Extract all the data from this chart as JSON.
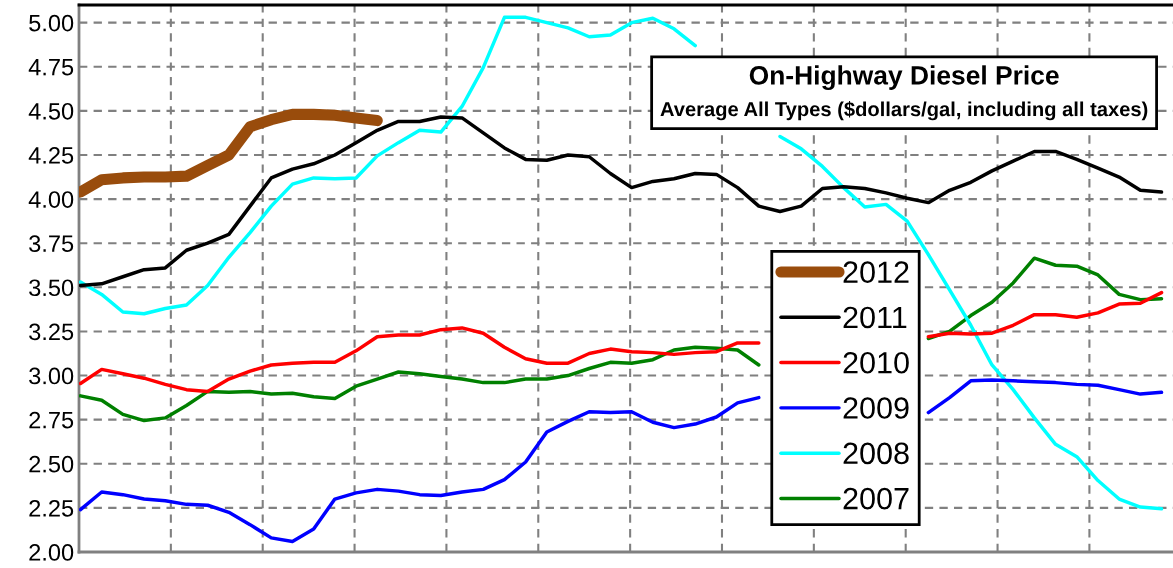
{
  "chart_data": {
    "type": "line",
    "title": "On-Highway Diesel Price",
    "subtitle": "Average All Types ($dollars/gal, including all taxes)",
    "categories": [
      null,
      null,
      null,
      null,
      null,
      null,
      null,
      null,
      null,
      null,
      null,
      null,
      null,
      null,
      null,
      null,
      null,
      null,
      null,
      null,
      null,
      null,
      null,
      null,
      null,
      null,
      null,
      null,
      null,
      null,
      null,
      null,
      null,
      null,
      null,
      null,
      null,
      null,
      null,
      null,
      null,
      null,
      null,
      null,
      null,
      null,
      null,
      null,
      null,
      null,
      null,
      null
    ],
    "ylim": [
      2.0,
      5.1
    ],
    "yticks": [
      {
        "value": 2.0,
        "label": "2.00"
      },
      {
        "value": 2.25,
        "label": "2.25"
      },
      {
        "value": 2.5,
        "label": "2.50"
      },
      {
        "value": 2.75,
        "label": "2.75"
      },
      {
        "value": 3.0,
        "label": "3.00"
      },
      {
        "value": 3.25,
        "label": "3.25"
      },
      {
        "value": 3.5,
        "label": "3.50"
      },
      {
        "value": 3.75,
        "label": "3.75"
      },
      {
        "value": 4.0,
        "label": "4.00"
      },
      {
        "value": 4.25,
        "label": "4.25"
      },
      {
        "value": 4.5,
        "label": "4.50"
      },
      {
        "value": 4.75,
        "label": "4.75"
      },
      {
        "value": 5.0,
        "label": "5.00"
      }
    ],
    "grid": true,
    "legend": "bottom right",
    "marker": "none",
    "line_style": "solid",
    "tick_labels": "y",
    "series": [
      {
        "name": "2012",
        "color": "#994c0c",
        "values": [
          4.04,
          4.11,
          4.12,
          4.125,
          4.125,
          4.13,
          4.19,
          4.25,
          4.41,
          4.45,
          4.48,
          4.48,
          4.475,
          4.46,
          4.445,
          null,
          null,
          null,
          null,
          null,
          null,
          null,
          null,
          null,
          null,
          null,
          null,
          null,
          null,
          null,
          null,
          null,
          null,
          null,
          null,
          null,
          null,
          null,
          null,
          null,
          null,
          null,
          null,
          null,
          null,
          null,
          null,
          null,
          null,
          null,
          null,
          null
        ]
      },
      {
        "name": "2011",
        "color": "#000000",
        "values": [
          3.51,
          3.52,
          3.56,
          3.6,
          3.61,
          3.71,
          3.75,
          3.8,
          3.96,
          4.12,
          4.17,
          4.2,
          4.25,
          4.32,
          4.39,
          4.44,
          4.44,
          4.465,
          4.46,
          4.375,
          4.29,
          4.225,
          4.22,
          4.25,
          4.24,
          4.145,
          4.065,
          4.1,
          4.115,
          4.145,
          4.14,
          4.065,
          3.96,
          3.93,
          3.96,
          4.06,
          4.07,
          4.06,
          4.035,
          4.005,
          3.98,
          4.05,
          4.095,
          4.16,
          4.215,
          4.27,
          4.27,
          4.225,
          4.175,
          4.125,
          4.05,
          4.04
        ]
      },
      {
        "name": "2010",
        "color": "#ff0000",
        "values": [
          2.955,
          3.035,
          3.01,
          2.985,
          2.95,
          2.92,
          2.91,
          2.98,
          3.025,
          3.06,
          3.07,
          3.075,
          3.075,
          3.14,
          3.22,
          3.23,
          3.23,
          3.26,
          3.27,
          3.24,
          3.16,
          3.095,
          3.07,
          3.07,
          3.125,
          3.15,
          3.135,
          3.13,
          3.12,
          3.13,
          3.135,
          3.185,
          3.185,
          null,
          null,
          null,
          null,
          null,
          null,
          null,
          3.22,
          3.24,
          3.235,
          3.24,
          3.285,
          3.345,
          3.345,
          3.33,
          3.355,
          3.405,
          3.41,
          3.47
        ]
      },
      {
        "name": "2009",
        "color": "#0000ff",
        "values": [
          2.24,
          2.34,
          2.325,
          2.3,
          2.29,
          2.27,
          2.265,
          2.225,
          2.155,
          2.08,
          2.06,
          2.13,
          2.3,
          2.335,
          2.355,
          2.345,
          2.325,
          2.32,
          2.34,
          2.355,
          2.41,
          2.51,
          2.68,
          2.74,
          2.795,
          2.79,
          2.795,
          2.735,
          2.705,
          2.725,
          2.765,
          2.845,
          2.875,
          null,
          null,
          null,
          null,
          null,
          null,
          null,
          2.79,
          2.875,
          2.97,
          2.975,
          2.97,
          2.965,
          2.96,
          2.95,
          2.945,
          2.92,
          2.895,
          2.905
        ]
      },
      {
        "name": "2008",
        "color": "#00ffff",
        "values": [
          3.53,
          3.46,
          3.36,
          3.35,
          3.38,
          3.4,
          3.51,
          3.67,
          3.81,
          3.96,
          4.085,
          4.12,
          4.115,
          4.12,
          4.245,
          4.32,
          4.39,
          4.38,
          4.525,
          4.745,
          5.03,
          5.03,
          5.0,
          4.97,
          4.92,
          4.93,
          5.0,
          5.025,
          4.965,
          4.87,
          null,
          null,
          null,
          4.355,
          4.285,
          4.185,
          4.065,
          3.955,
          3.97,
          3.875,
          3.685,
          3.485,
          3.285,
          3.06,
          2.92,
          2.76,
          2.61,
          2.54,
          2.405,
          2.3,
          2.255,
          2.245
        ]
      },
      {
        "name": "2007",
        "color": "#008000",
        "values": [
          2.885,
          2.86,
          2.78,
          2.745,
          2.76,
          2.83,
          2.91,
          2.905,
          2.91,
          2.895,
          2.9,
          2.88,
          2.87,
          2.94,
          2.98,
          3.02,
          3.01,
          2.995,
          2.98,
          2.96,
          2.96,
          2.98,
          2.98,
          3.0,
          3.04,
          3.075,
          3.07,
          3.09,
          3.145,
          3.16,
          3.155,
          3.145,
          3.06,
          null,
          null,
          null,
          null,
          null,
          null,
          null,
          3.21,
          3.25,
          3.34,
          3.415,
          3.525,
          3.665,
          3.625,
          3.62,
          3.57,
          3.46,
          3.43,
          3.435
        ]
      }
    ]
  }
}
